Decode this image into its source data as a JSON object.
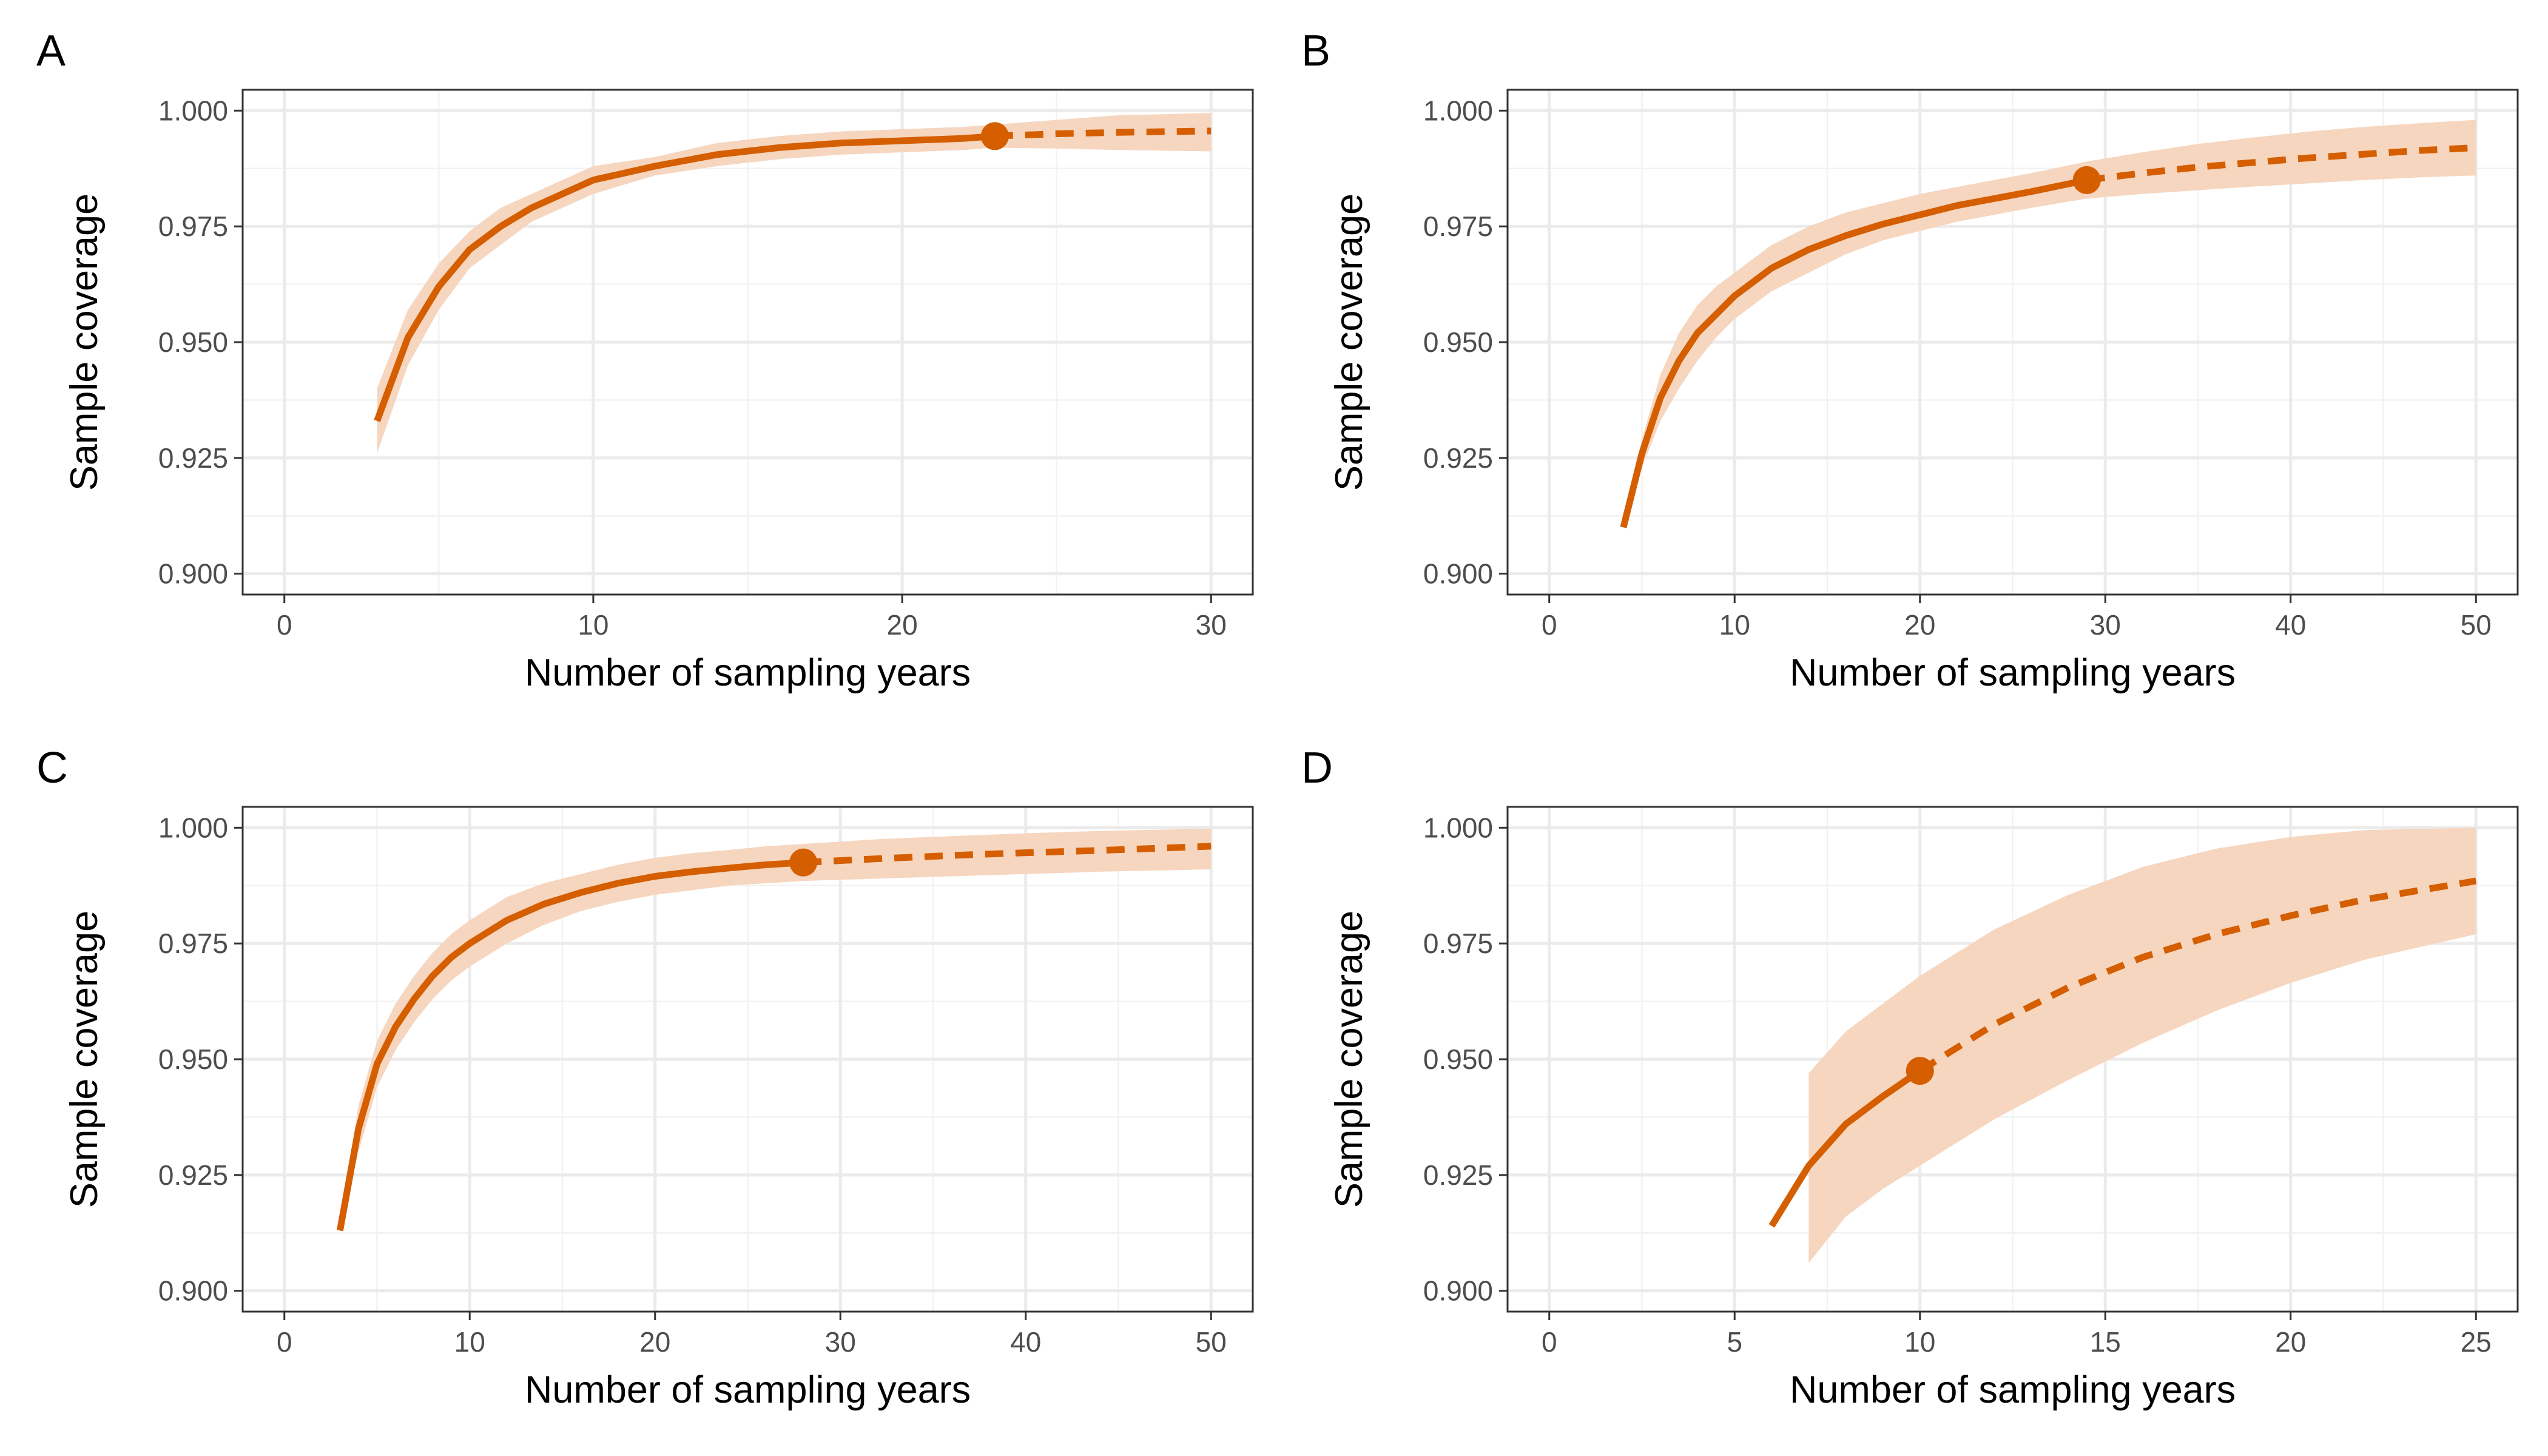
{
  "colors": {
    "line": "#d55e00",
    "band": "#f6d6bf"
  },
  "chart_data": [
    {
      "panel": "A",
      "type": "line",
      "xlabel": "Number of sampling years",
      "ylabel": "Sample coverage",
      "xlim": [
        0,
        30
      ],
      "ylim": [
        0.9,
        1.0
      ],
      "xticks": [
        0,
        10,
        20,
        30
      ],
      "xtick_labels": [
        "0",
        "10",
        "20",
        "30"
      ],
      "yticks": [
        0.9,
        0.925,
        0.95,
        0.975,
        1.0
      ],
      "ytick_labels": [
        "0.900",
        "0.925",
        "0.950",
        "0.975",
        "1.000"
      ],
      "observed": {
        "x": 23,
        "y": 0.9945
      },
      "interpolated": {
        "x": [
          3,
          4,
          5,
          6,
          7,
          8,
          9,
          10,
          12,
          14,
          16,
          18,
          20,
          22,
          23
        ],
        "y": [
          0.933,
          0.951,
          0.962,
          0.97,
          0.975,
          0.979,
          0.982,
          0.985,
          0.988,
          0.9905,
          0.992,
          0.993,
          0.9935,
          0.994,
          0.9945
        ],
        "lower": [
          0.926,
          0.945,
          0.957,
          0.966,
          0.971,
          0.976,
          0.979,
          0.982,
          0.986,
          0.988,
          0.9895,
          0.9905,
          0.991,
          0.9915,
          0.992
        ],
        "upper": [
          0.94,
          0.957,
          0.967,
          0.974,
          0.979,
          0.982,
          0.985,
          0.988,
          0.99,
          0.993,
          0.9945,
          0.9955,
          0.996,
          0.9965,
          0.997
        ]
      },
      "extrapolated": {
        "x": [
          23,
          25,
          27,
          30
        ],
        "y": [
          0.9945,
          0.995,
          0.9953,
          0.9956
        ],
        "lower": [
          0.992,
          0.9918,
          0.9915,
          0.9912
        ],
        "upper": [
          0.997,
          0.998,
          0.999,
          0.9995
        ]
      }
    },
    {
      "panel": "B",
      "type": "line",
      "xlabel": "Number of sampling years",
      "ylabel": "Sample coverage",
      "xlim": [
        0,
        50
      ],
      "ylim": [
        0.9,
        1.0
      ],
      "xticks": [
        0,
        10,
        20,
        30,
        40,
        50
      ],
      "xtick_labels": [
        "0",
        "10",
        "20",
        "30",
        "40",
        "50"
      ],
      "yticks": [
        0.9,
        0.925,
        0.95,
        0.975,
        1.0
      ],
      "ytick_labels": [
        "0.900",
        "0.925",
        "0.950",
        "0.975",
        "1.000"
      ],
      "observed": {
        "x": 29,
        "y": 0.985
      },
      "interpolated": {
        "x": [
          4,
          5,
          6,
          7,
          8,
          9,
          10,
          12,
          14,
          16,
          18,
          20,
          22,
          24,
          26,
          29
        ],
        "y": [
          0.91,
          0.926,
          0.938,
          0.946,
          0.952,
          0.956,
          0.96,
          0.966,
          0.97,
          0.973,
          0.9755,
          0.9775,
          0.9795,
          0.981,
          0.9825,
          0.985
        ],
        "lower": [
          0.91,
          0.923,
          0.933,
          0.94,
          0.946,
          0.951,
          0.955,
          0.961,
          0.965,
          0.969,
          0.972,
          0.974,
          0.976,
          0.9775,
          0.979,
          0.981
        ],
        "upper": [
          0.91,
          0.929,
          0.943,
          0.952,
          0.958,
          0.962,
          0.965,
          0.971,
          0.975,
          0.978,
          0.98,
          0.982,
          0.9835,
          0.985,
          0.9865,
          0.989
        ]
      },
      "extrapolated": {
        "x": [
          29,
          32,
          35,
          38,
          41,
          44,
          47,
          50
        ],
        "y": [
          0.985,
          0.9865,
          0.9878,
          0.9888,
          0.9898,
          0.9906,
          0.9914,
          0.992
        ],
        "lower": [
          0.981,
          0.982,
          0.9828,
          0.9836,
          0.9843,
          0.985,
          0.9856,
          0.986
        ],
        "upper": [
          0.989,
          0.991,
          0.9928,
          0.9942,
          0.9955,
          0.9965,
          0.9973,
          0.998
        ]
      }
    },
    {
      "panel": "C",
      "type": "line",
      "xlabel": "Number of sampling years",
      "ylabel": "Sample coverage",
      "xlim": [
        0,
        50
      ],
      "ylim": [
        0.9,
        1.0
      ],
      "xticks": [
        0,
        10,
        20,
        30,
        40,
        50
      ],
      "xtick_labels": [
        "0",
        "10",
        "20",
        "30",
        "40",
        "50"
      ],
      "yticks": [
        0.9,
        0.925,
        0.95,
        0.975,
        1.0
      ],
      "ytick_labels": [
        "0.900",
        "0.925",
        "0.950",
        "0.975",
        "1.000"
      ],
      "observed": {
        "x": 28,
        "y": 0.9925
      },
      "interpolated": {
        "x": [
          3,
          4,
          5,
          6,
          7,
          8,
          9,
          10,
          12,
          14,
          16,
          18,
          20,
          22,
          24,
          26,
          28
        ],
        "y": [
          0.913,
          0.935,
          0.949,
          0.957,
          0.963,
          0.968,
          0.972,
          0.975,
          0.98,
          0.9835,
          0.986,
          0.988,
          0.9895,
          0.9905,
          0.9913,
          0.992,
          0.9925
        ],
        "lower": [
          0.913,
          0.93,
          0.944,
          0.952,
          0.958,
          0.963,
          0.967,
          0.97,
          0.975,
          0.979,
          0.982,
          0.984,
          0.9855,
          0.9865,
          0.9875,
          0.988,
          0.9885
        ],
        "upper": [
          0.913,
          0.94,
          0.954,
          0.962,
          0.968,
          0.973,
          0.977,
          0.98,
          0.985,
          0.988,
          0.99,
          0.992,
          0.9935,
          0.9945,
          0.9952,
          0.996,
          0.9965
        ]
      },
      "extrapolated": {
        "x": [
          28,
          32,
          36,
          40,
          44,
          50
        ],
        "y": [
          0.9925,
          0.9933,
          0.994,
          0.9946,
          0.9951,
          0.996
        ],
        "lower": [
          0.9885,
          0.989,
          0.9895,
          0.99,
          0.9905,
          0.991
        ],
        "upper": [
          0.9965,
          0.9975,
          0.9982,
          0.9988,
          0.9993,
          0.9998
        ]
      }
    },
    {
      "panel": "D",
      "type": "line",
      "xlabel": "Number of sampling years",
      "ylabel": "Sample coverage",
      "xlim": [
        0,
        25
      ],
      "ylim": [
        0.9,
        1.0
      ],
      "xticks": [
        0,
        5,
        10,
        15,
        20,
        25
      ],
      "xtick_labels": [
        "0",
        "5",
        "10",
        "15",
        "20",
        "25"
      ],
      "yticks": [
        0.9,
        0.925,
        0.95,
        0.975,
        1.0
      ],
      "ytick_labels": [
        "0.900",
        "0.925",
        "0.950",
        "0.975",
        "1.000"
      ],
      "observed": {
        "x": 10,
        "y": 0.9475
      },
      "interpolated": {
        "x": [
          6,
          7,
          8,
          9,
          10
        ],
        "y": [
          0.914,
          0.927,
          0.936,
          0.942,
          0.9475
        ],
        "lower": [
          null,
          0.906,
          0.916,
          0.922,
          0.927
        ],
        "upper": [
          null,
          0.947,
          0.956,
          0.962,
          0.968
        ]
      },
      "band_start": {
        "x": 7
      },
      "extrapolated": {
        "x": [
          10,
          12,
          14,
          16,
          18,
          20,
          22,
          25
        ],
        "y": [
          0.9475,
          0.9575,
          0.9655,
          0.972,
          0.977,
          0.981,
          0.9845,
          0.9885
        ],
        "lower": [
          0.927,
          0.937,
          0.9455,
          0.9535,
          0.9605,
          0.9665,
          0.9715,
          0.977
        ],
        "upper": [
          0.968,
          0.978,
          0.9855,
          0.9915,
          0.9955,
          0.998,
          0.9995,
          1.0
        ]
      }
    }
  ]
}
